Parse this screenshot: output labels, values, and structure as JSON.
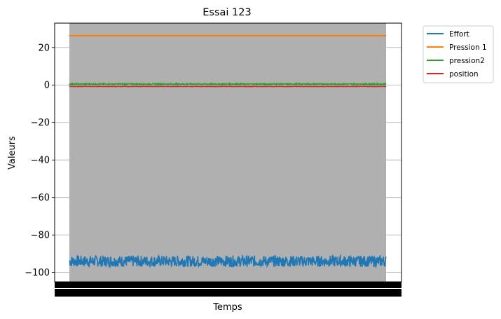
{
  "chart_data": {
    "type": "line",
    "title": "Essai 123",
    "xlabel": "Temps",
    "ylabel": "Valeurs",
    "ylim": [
      -105,
      33
    ],
    "yticks": [
      20,
      0,
      -20,
      -40,
      -60,
      -80,
      -100
    ],
    "ytick_labels": [
      "20",
      "0",
      "−20",
      "−40",
      "−60",
      "−80",
      "−100"
    ],
    "grid": "horizontal",
    "legend_position": "outside-top-right",
    "shaded_region": {
      "color": "#b0b0b0"
    },
    "series": [
      {
        "name": "Effort",
        "color": "#1f77b4",
        "mean": -94,
        "spread": 3
      },
      {
        "name": "Pression 1",
        "color": "#ff7f0e",
        "mean": 26.3,
        "spread": 0
      },
      {
        "name": "pression2",
        "color": "#2ca02c",
        "mean": 0.5,
        "spread": 0.3
      },
      {
        "name": "position",
        "color": "#d62728",
        "mean": -0.8,
        "spread": 0.1
      }
    ]
  }
}
